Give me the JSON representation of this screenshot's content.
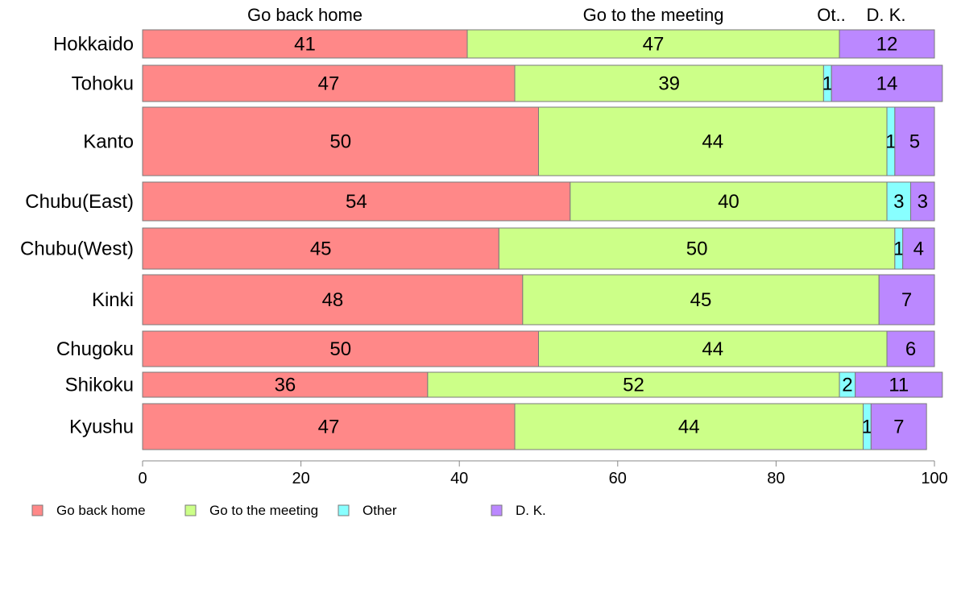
{
  "chart_data": {
    "type": "bar",
    "orientation": "horizontal",
    "stacked": true,
    "categories": [
      "Hokkaido",
      "Tohoku",
      "Kanto",
      "Chubu(East)",
      "Chubu(West)",
      "Kinki",
      "Chugoku",
      "Shikoku",
      "Kyushu"
    ],
    "series": [
      {
        "name": "Go back home",
        "color": "#ff8888",
        "values": [
          41,
          47,
          50,
          54,
          45,
          48,
          50,
          36,
          47
        ]
      },
      {
        "name": "Go to the meeting",
        "color": "#ccff88",
        "values": [
          47,
          39,
          44,
          40,
          50,
          45,
          44,
          52,
          44
        ]
      },
      {
        "name": "Other",
        "color": "#88ffff",
        "values": [
          0,
          1,
          1,
          3,
          1,
          0,
          0,
          2,
          1
        ]
      },
      {
        "name": "D. K.",
        "color": "#bb88ff",
        "values": [
          12,
          14,
          5,
          3,
          4,
          7,
          6,
          11,
          7
        ]
      }
    ],
    "top_labels": [
      "Go back home",
      "Go to the meeting",
      "Ot..",
      "D. K."
    ],
    "xlim": [
      0,
      100
    ],
    "xticks": [
      0,
      20,
      40,
      60,
      80,
      100
    ],
    "legend_position": "bottom-left",
    "grid": false
  }
}
